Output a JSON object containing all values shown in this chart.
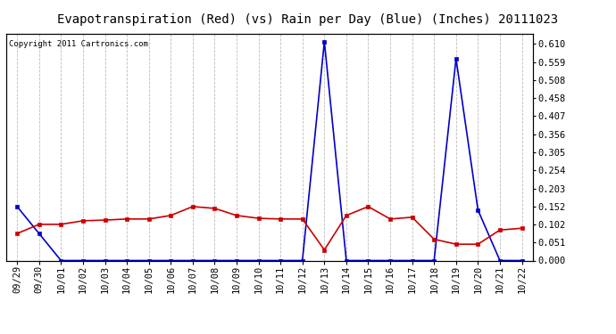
{
  "title": "Evapotranspiration (Red) (vs) Rain per Day (Blue) (Inches) 20111023",
  "copyright": "Copyright 2011 Cartronics.com",
  "dates": [
    "09/29",
    "09/30",
    "10/01",
    "10/02",
    "10/03",
    "10/04",
    "10/05",
    "10/06",
    "10/07",
    "10/08",
    "10/09",
    "10/10",
    "10/11",
    "10/12",
    "10/13",
    "10/14",
    "10/15",
    "10/16",
    "10/17",
    "10/18",
    "10/19",
    "10/20",
    "10/21",
    "10/22"
  ],
  "red_values": [
    0.076,
    0.102,
    0.102,
    0.112,
    0.114,
    0.117,
    0.117,
    0.127,
    0.152,
    0.147,
    0.127,
    0.119,
    0.117,
    0.117,
    0.03,
    0.127,
    0.152,
    0.117,
    0.122,
    0.06,
    0.046,
    0.046,
    0.086,
    0.091
  ],
  "blue_values": [
    0.152,
    0.076,
    0.0,
    0.0,
    0.0,
    0.0,
    0.0,
    0.0,
    0.0,
    0.0,
    0.0,
    0.0,
    0.0,
    0.0,
    0.617,
    0.0,
    0.0,
    0.0,
    0.0,
    0.0,
    0.569,
    0.142,
    0.0,
    0.0
  ],
  "ylim": [
    0.0,
    0.64
  ],
  "yticks": [
    0.0,
    0.051,
    0.102,
    0.152,
    0.203,
    0.254,
    0.305,
    0.356,
    0.407,
    0.458,
    0.508,
    0.559,
    0.61
  ],
  "background_color": "#ffffff",
  "plot_bg_color": "#ffffff",
  "grid_color": "#bbbbbb",
  "red_color": "#cc0000",
  "blue_color": "#0000cc",
  "title_fontsize": 10,
  "copyright_fontsize": 6.5,
  "tick_fontsize": 7.5,
  "marker_size": 3
}
